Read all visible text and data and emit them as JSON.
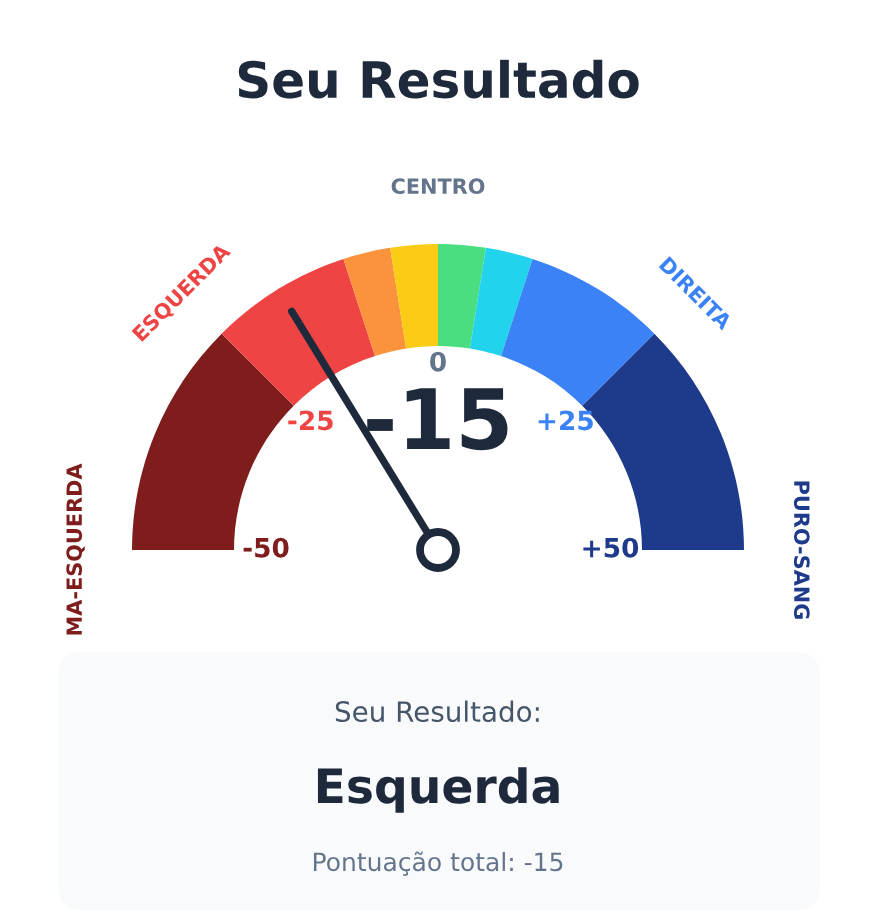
{
  "chart_data": {
    "type": "donut",
    "title": "Seu Resultado",
    "categories": [
      "MA-ESQUERDA",
      "ESQUERDA",
      null,
      null,
      null,
      null,
      "DIREITA",
      "PURO-SANG"
    ],
    "values": [
      25,
      15,
      5,
      5,
      5,
      5,
      15,
      25
    ],
    "colors": [
      "#7f1d1d",
      "#ef4444",
      "#fb923c",
      "#facc15",
      "#4ade80",
      "#22d3ee",
      "#3b82f6",
      "#1e3a8a"
    ],
    "needle": "ESQUERDA",
    "annotations": [
      "-15",
      "Seu Resultado:",
      "Esquerda",
      "Pontuação total: -15",
      "CENTRO",
      "-50",
      "-25",
      "0",
      "+25",
      "+50"
    ]
  }
}
